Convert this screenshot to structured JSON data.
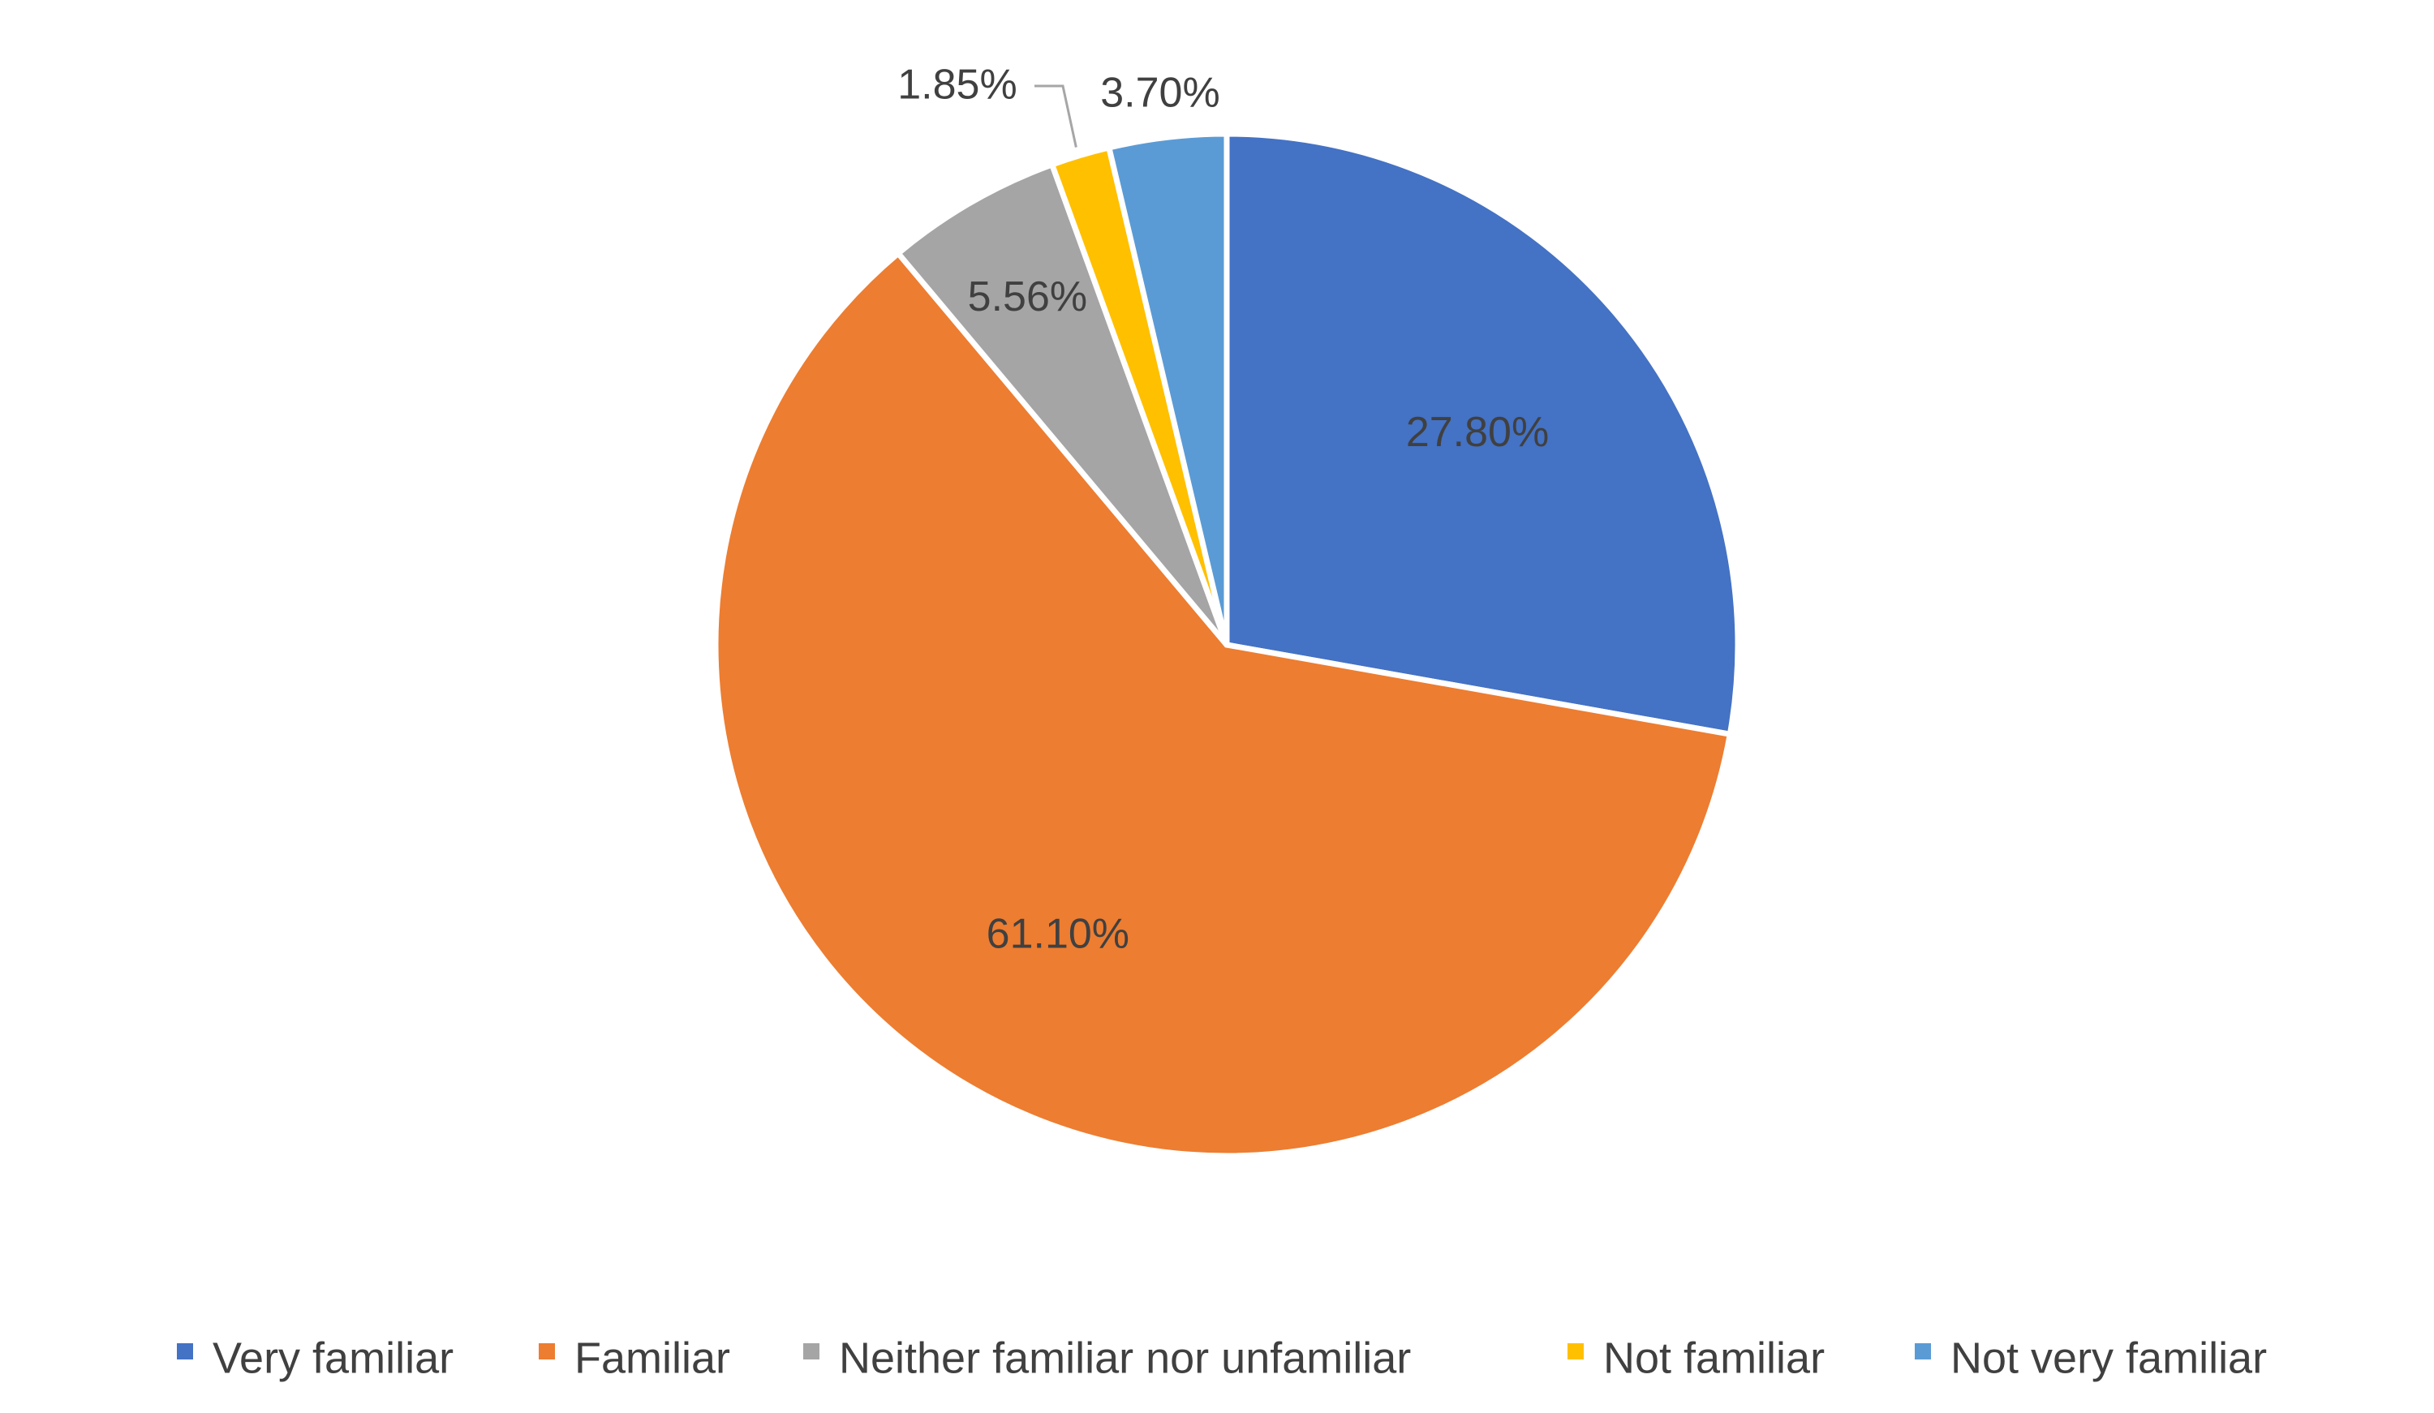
{
  "chart_data": {
    "type": "pie",
    "title": "",
    "categories": [
      "Very familiar",
      "Familiar",
      "Neither familiar nor unfamiliar",
      "Not familiar",
      "Not very familiar"
    ],
    "values": [
      27.8,
      61.1,
      5.56,
      1.85,
      3.7
    ],
    "data_labels": [
      "27.80%",
      "61.10%",
      "5.56%",
      "1.85%",
      "3.70%"
    ],
    "colors": [
      "#4472C4",
      "#ED7D31",
      "#A5A5A5",
      "#FFC000",
      "#5B9BD5"
    ],
    "start_angle_deg": 0,
    "direction": "clockwise",
    "legend": {
      "position": "bottom",
      "entries": [
        "Very familiar",
        "Familiar",
        "Neither familiar nor unfamiliar",
        "Not familiar",
        "Not very familiar"
      ]
    }
  }
}
